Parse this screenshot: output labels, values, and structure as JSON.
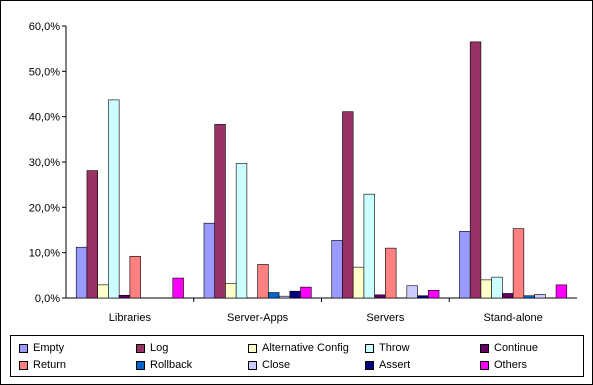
{
  "chart_data": {
    "type": "bar",
    "categories": [
      "Libraries",
      "Server-Apps",
      "Servers",
      "Stand-alone"
    ],
    "series": [
      {
        "name": "Empty",
        "color": "#9999FF",
        "values": [
          11.2,
          16.5,
          12.7,
          14.7
        ]
      },
      {
        "name": "Log",
        "color": "#993366",
        "values": [
          28.1,
          38.3,
          41.1,
          56.5
        ]
      },
      {
        "name": "Alternative Config",
        "color": "#FFFFCC",
        "values": [
          2.9,
          3.2,
          6.8,
          4.0
        ]
      },
      {
        "name": "Throw",
        "color": "#CCFFFF",
        "values": [
          43.7,
          29.7,
          22.9,
          4.6
        ]
      },
      {
        "name": "Continue",
        "color": "#660066",
        "values": [
          0.6,
          0.0,
          0.7,
          1.0
        ]
      },
      {
        "name": "Return",
        "color": "#FF8080",
        "values": [
          9.2,
          7.4,
          11.0,
          15.3
        ]
      },
      {
        "name": "Rollback",
        "color": "#0066CC",
        "values": [
          0.0,
          1.2,
          0.0,
          0.5
        ]
      },
      {
        "name": "Close",
        "color": "#CCCCFF",
        "values": [
          0.0,
          0.4,
          2.7,
          0.8
        ]
      },
      {
        "name": "Assert",
        "color": "#000080",
        "values": [
          0.0,
          1.5,
          0.5,
          0.0
        ]
      },
      {
        "name": "Others",
        "color": "#FF00FF",
        "values": [
          4.4,
          2.4,
          1.7,
          2.9
        ]
      }
    ],
    "yticks": [
      "0,0%",
      "10,0%",
      "20,0%",
      "30,0%",
      "40,0%",
      "50,0%",
      "60,0%"
    ],
    "ylim": [
      0,
      60
    ],
    "grid": false,
    "legend_position": "bottom"
  }
}
